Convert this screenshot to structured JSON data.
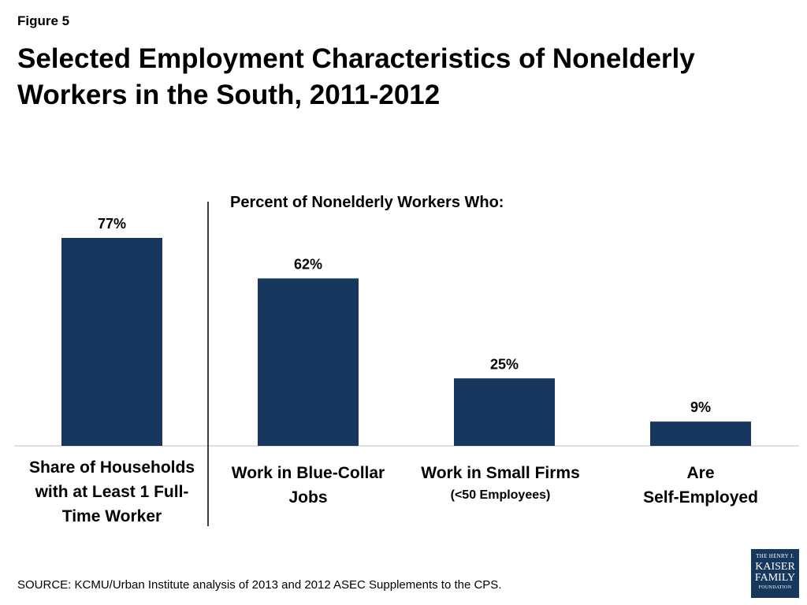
{
  "figure_label": "Figure 5",
  "title": "Selected Employment Characteristics of Nonelderly Workers in the South, 2011-2012",
  "subtitle": "Percent of  Nonelderly Workers Who:",
  "categories": [
    {
      "line1": "Share of Households",
      "line2": "with at Least 1 Full-",
      "line3": "Time Worker"
    },
    {
      "line1": "Work in Blue-Collar",
      "line2": "Jobs"
    },
    {
      "line1": "Work in Small Firms",
      "line2": "(<50 Employees)"
    },
    {
      "line1": "Are",
      "line2": "Self-Employed"
    }
  ],
  "source": "SOURCE: KCMU/Urban Institute analysis of 2013 and 2012 ASEC Supplements to the CPS.",
  "logo": {
    "line1": "THE HENRY J.",
    "line2": "KAISER",
    "line3": "FAMILY",
    "line4": "FOUNDATION"
  },
  "colors": {
    "bar": "#17375e",
    "logo_bg": "#17375e"
  },
  "chart_data": {
    "type": "bar",
    "title": "Selected Employment Characteristics of Nonelderly Workers in the South, 2011-2012",
    "subtitle": "Percent of  Nonelderly Workers Who:",
    "categories": [
      "Share of Households with at Least 1 Full-Time Worker",
      "Work in Blue-Collar Jobs",
      "Work in Small Firms (<50 Employees)",
      "Are Self-Employed"
    ],
    "values": [
      77,
      62,
      25,
      9
    ],
    "value_labels": [
      "77%",
      "62%",
      "25%",
      "9%"
    ],
    "ylim": [
      0,
      100
    ],
    "grid": false,
    "legend": "none"
  }
}
